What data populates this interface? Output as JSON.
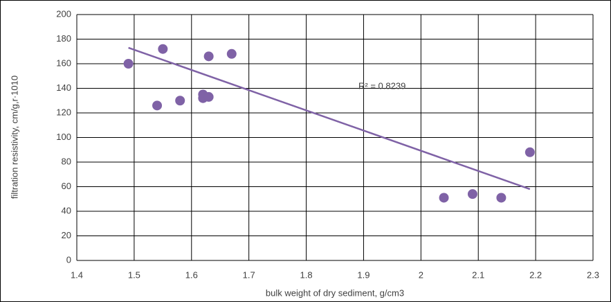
{
  "chart_data": {
    "type": "scatter",
    "x_label": "bulk weight of dry sediment, g/cm3",
    "y_label": "filtration resistivity, cm/g,r·1010",
    "annotation": "R² = 0.8239",
    "color": "#7f62a6",
    "x": [
      1.49,
      1.55,
      1.54,
      1.58,
      1.62,
      1.62,
      1.63,
      1.63,
      1.67,
      2.04,
      2.09,
      2.14,
      2.19
    ],
    "values": [
      160,
      172,
      126,
      130,
      135,
      132,
      133,
      166,
      168,
      51,
      54,
      51,
      88
    ],
    "trendline": {
      "x": [
        1.49,
        2.19
      ],
      "y": [
        173,
        58
      ]
    },
    "xlim": [
      1.4,
      2.3
    ],
    "xticks": [
      1.4,
      1.5,
      1.6,
      1.7,
      1.8,
      1.9,
      2,
      2.1,
      2.2,
      2.3
    ],
    "ylim": [
      0,
      200
    ],
    "yticks": [
      0,
      20,
      40,
      60,
      80,
      100,
      120,
      140,
      160,
      180,
      200
    ],
    "grid": true
  }
}
